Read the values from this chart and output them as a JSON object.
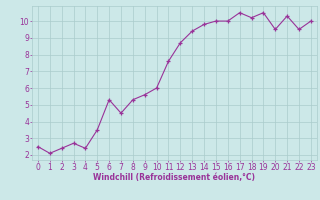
{
  "x": [
    0,
    1,
    2,
    3,
    4,
    5,
    6,
    7,
    8,
    9,
    10,
    11,
    12,
    13,
    14,
    15,
    16,
    17,
    18,
    19,
    20,
    21,
    22,
    23
  ],
  "y": [
    2.5,
    2.1,
    2.4,
    2.7,
    2.4,
    3.5,
    5.3,
    4.5,
    5.3,
    5.6,
    6.0,
    7.6,
    8.7,
    9.4,
    9.8,
    10.0,
    10.0,
    10.5,
    10.2,
    10.5,
    9.5,
    10.3,
    9.5,
    10.0
  ],
  "line_color": "#993399",
  "marker": "+",
  "bg_color": "#cce8e8",
  "grid_color": "#aacccc",
  "xlabel": "Windchill (Refroidissement éolien,°C)",
  "yticks": [
    2,
    3,
    4,
    5,
    6,
    7,
    8,
    9,
    10
  ],
  "xlim": [
    -0.5,
    23.5
  ],
  "ylim": [
    1.7,
    10.9
  ],
  "xlabel_color": "#993399",
  "tick_color": "#993399",
  "tick_fontsize": 5.5,
  "xlabel_fontsize": 5.5,
  "line_width": 0.8,
  "marker_size": 3.5,
  "marker_edge_width": 0.9
}
